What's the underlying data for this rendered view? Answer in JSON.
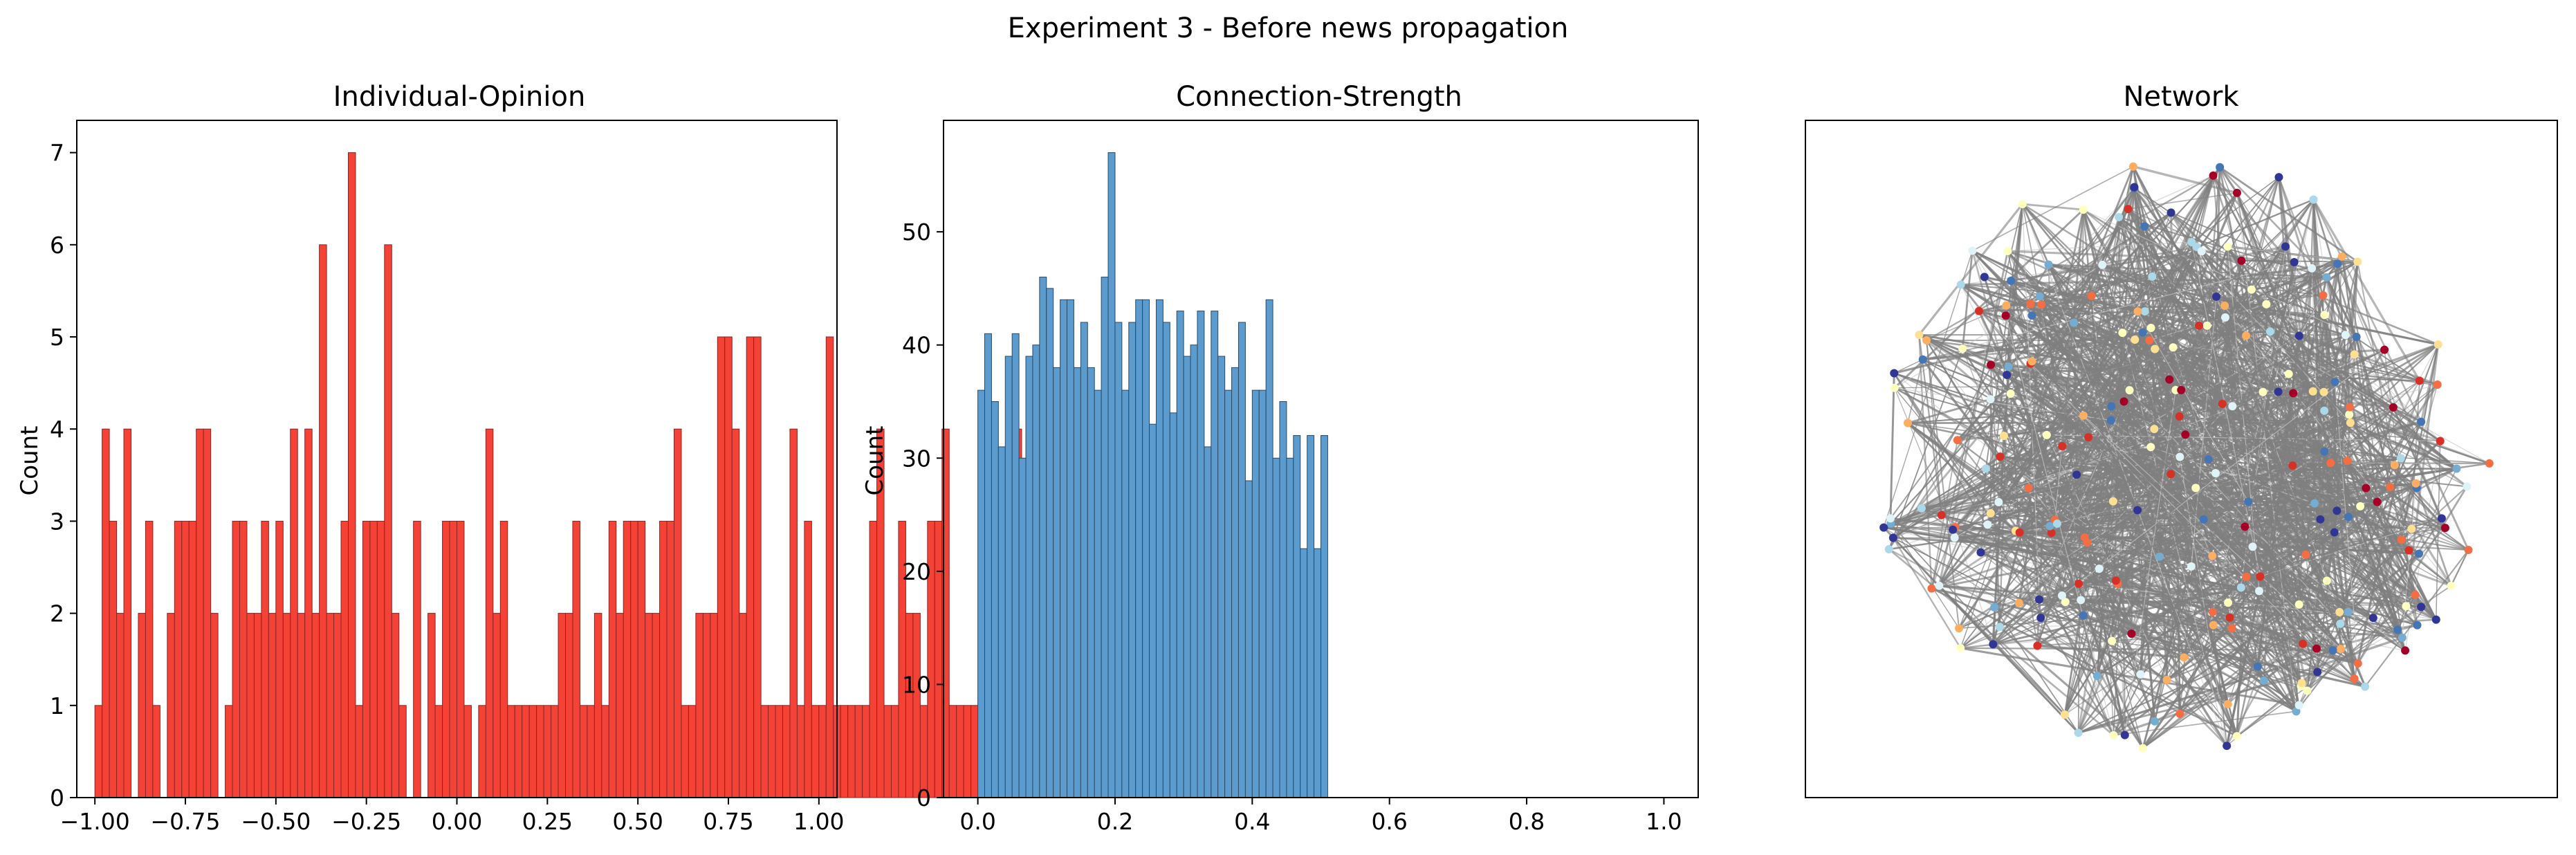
{
  "figure": {
    "suptitle": "Experiment 3 - Before news propagation"
  },
  "chart_data": [
    {
      "type": "bar",
      "title": "Individual-Opinion",
      "xlabel": "",
      "ylabel": "Count",
      "xlim": [
        -1.05,
        1.05
      ],
      "ylim": [
        0,
        7.35
      ],
      "xticks": [
        -1.0,
        -0.75,
        -0.5,
        -0.25,
        0.0,
        0.25,
        0.5,
        0.75,
        1.0
      ],
      "xtick_labels": [
        "−1.00",
        "−0.75",
        "−0.50",
        "−0.25",
        "0.00",
        "0.25",
        "0.50",
        "0.75",
        "1.00"
      ],
      "yticks": [
        0,
        1,
        2,
        3,
        4,
        5,
        6,
        7
      ],
      "ytick_labels": [
        "0",
        "1",
        "2",
        "3",
        "4",
        "5",
        "6",
        "7"
      ],
      "bin_start": -1.0,
      "bin_width": 0.02,
      "values": [
        1,
        4,
        3,
        2,
        4,
        0,
        2,
        3,
        1,
        0,
        2,
        3,
        3,
        3,
        4,
        4,
        2,
        0,
        1,
        3,
        3,
        2,
        2,
        3,
        2,
        3,
        2,
        4,
        2,
        4,
        2,
        6,
        2,
        2,
        3,
        7,
        1,
        3,
        3,
        3,
        6,
        2,
        1,
        0,
        3,
        0,
        2,
        1,
        3,
        3,
        3,
        1,
        0,
        1,
        4,
        2,
        3,
        1,
        1,
        1,
        1,
        1,
        1,
        1,
        2,
        2,
        3,
        1,
        1,
        2,
        1,
        3,
        2,
        3,
        3,
        3,
        2,
        2,
        3,
        3,
        4,
        1,
        1,
        2,
        2,
        2,
        5,
        5,
        4,
        2,
        5,
        5,
        1,
        1,
        1,
        1,
        4,
        1,
        3,
        1,
        1,
        5,
        1,
        1,
        1,
        1,
        1,
        3,
        4,
        1,
        1,
        3,
        2,
        2,
        1,
        3,
        3,
        4,
        1,
        1,
        1,
        1,
        3,
        2,
        1,
        3,
        1,
        4,
        3,
        2,
        2,
        2,
        1,
        1,
        1,
        1,
        1,
        1,
        1,
        1,
        1,
        1,
        1,
        1,
        1,
        1,
        1,
        1,
        1,
        1,
        1,
        1,
        1,
        1,
        1
      ],
      "bar_color": "#f44336",
      "edge_color": "#8b2323"
    },
    {
      "type": "bar",
      "title": "Connection-Strength",
      "xlabel": "",
      "ylabel": "Count",
      "xlim": [
        -0.05,
        1.05
      ],
      "ylim": [
        0,
        59.85
      ],
      "xticks": [
        0.0,
        0.2,
        0.4,
        0.6,
        0.8,
        1.0
      ],
      "xtick_labels": [
        "0.0",
        "0.2",
        "0.4",
        "0.6",
        "0.8",
        "1.0"
      ],
      "yticks": [
        0,
        10,
        20,
        30,
        40,
        50
      ],
      "ytick_labels": [
        "0",
        "10",
        "20",
        "30",
        "40",
        "50"
      ],
      "bin_start": 0.0,
      "bin_width": 0.01,
      "values": [
        36,
        41,
        35,
        31,
        39,
        41,
        30,
        39,
        40,
        46,
        45,
        38,
        44,
        44,
        38,
        42,
        38,
        36,
        46,
        57,
        42,
        36,
        42,
        44,
        44,
        33,
        44,
        42,
        34,
        43,
        39,
        40,
        43,
        31,
        43,
        39,
        36,
        38,
        42,
        28,
        36,
        36,
        44,
        30,
        35,
        30,
        32,
        22,
        32,
        22,
        32
      ],
      "bar_color": "#5b9bcd",
      "edge_color": "#2b4a66"
    }
  ],
  "network": {
    "title": "Network",
    "node_count": 260,
    "edge_count": 1500,
    "edge_color": "#7f7f7f",
    "node_palette": [
      "#a50026",
      "#d73027",
      "#f46d43",
      "#fdae61",
      "#fee090",
      "#ffffbf",
      "#e0f3f8",
      "#abd9e9",
      "#74add1",
      "#4575b4",
      "#313695"
    ]
  }
}
